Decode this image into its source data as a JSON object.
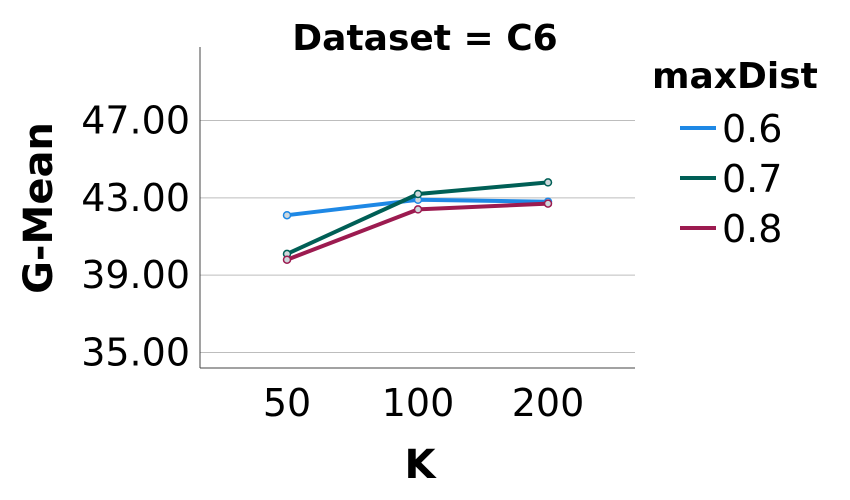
{
  "chart_data": {
    "type": "line",
    "title": "Dataset = C6",
    "xlabel": "K",
    "ylabel": "G-Mean",
    "categories": [
      "50",
      "100",
      "200"
    ],
    "yticks": [
      "35.00",
      "39.00",
      "43.00",
      "47.00"
    ],
    "ylim": [
      34.2,
      50.8
    ],
    "grid": true,
    "legend": {
      "title": "maxDist",
      "placement": "right"
    },
    "series": [
      {
        "name": "0.6",
        "color": "#1e88e5",
        "values": [
          42.1,
          42.9,
          42.8
        ]
      },
      {
        "name": "0.7",
        "color": "#005f56",
        "values": [
          40.1,
          43.2,
          43.8
        ]
      },
      {
        "name": "0.8",
        "color": "#9c1b50",
        "values": [
          39.8,
          42.4,
          42.7
        ]
      }
    ]
  }
}
